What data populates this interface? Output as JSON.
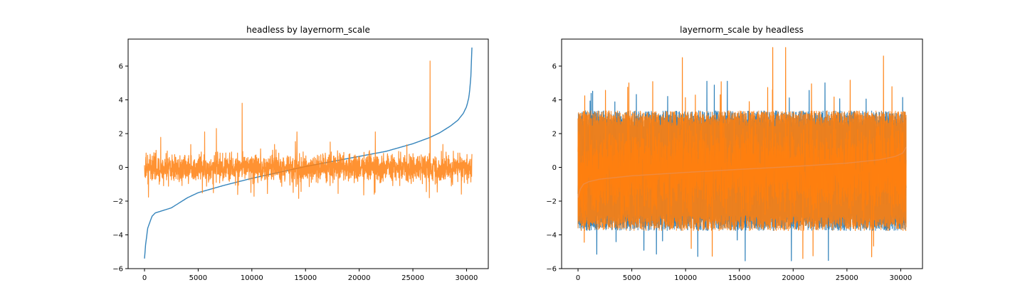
{
  "chart_data": [
    {
      "type": "line",
      "title": "headless by layernorm_scale",
      "xlabel": "",
      "ylabel": "",
      "xlim": [
        -1525,
        32025
      ],
      "ylim": [
        -6,
        7.6
      ],
      "xticks": [
        0,
        5000,
        10000,
        15000,
        20000,
        25000,
        30000
      ],
      "xtick_labels": [
        "0",
        "5000",
        "10000",
        "15000",
        "20000",
        "25000",
        "30000"
      ],
      "yticks": [
        -6,
        -4,
        -2,
        0,
        2,
        4,
        6
      ],
      "ytick_labels": [
        "−6",
        "−4",
        "−2",
        "0",
        "2",
        "4",
        "6"
      ],
      "grid": false,
      "legend": "none",
      "n_points": 30500,
      "series": [
        {
          "color": "#1f77b4",
          "style": "smooth sorted curve",
          "x": [
            0,
            100,
            300,
            700,
            1000,
            1500,
            2000,
            2500,
            3000,
            4000,
            5000,
            7500,
            10000,
            12500,
            15000,
            17500,
            20000,
            22500,
            25000,
            26500,
            27500,
            28500,
            29200,
            29700,
            30000,
            30200,
            30300,
            30400,
            30450,
            30500
          ],
          "y": [
            -5.4,
            -4.6,
            -3.6,
            -2.9,
            -2.7,
            -2.6,
            -2.5,
            -2.4,
            -2.2,
            -1.8,
            -1.5,
            -1.05,
            -0.65,
            -0.3,
            0.05,
            0.35,
            0.65,
            0.95,
            1.4,
            1.75,
            2.05,
            2.45,
            2.8,
            3.2,
            3.6,
            4.1,
            4.6,
            5.4,
            6.2,
            7.1
          ]
        },
        {
          "color": "#ff7f0e",
          "style": "dense noisy trace, ~±1 band",
          "band": [
            -1.2,
            1.1
          ],
          "spikes": [
            {
              "x": 5600,
              "y": 2.1
            },
            {
              "x": 6700,
              "y": 2.3
            },
            {
              "x": 9100,
              "y": 3.8
            },
            {
              "x": 14200,
              "y": 2.1
            },
            {
              "x": 21500,
              "y": 2.1
            },
            {
              "x": 26600,
              "y": 6.3
            }
          ]
        }
      ]
    },
    {
      "type": "line",
      "title": "layernorm_scale by headless",
      "xlabel": "",
      "ylabel": "",
      "xlim": [
        -1525,
        32025
      ],
      "ylim": [
        -6,
        7.6
      ],
      "xticks": [
        0,
        5000,
        10000,
        15000,
        20000,
        25000,
        30000
      ],
      "xtick_labels": [
        "0",
        "5000",
        "10000",
        "15000",
        "20000",
        "25000",
        "30000"
      ],
      "yticks": [
        -6,
        -4,
        -2,
        0,
        2,
        4,
        6
      ],
      "ytick_labels": [
        "−6",
        "−4",
        "−2",
        "0",
        "2",
        "4",
        "6"
      ],
      "grid": false,
      "legend": "none",
      "n_points": 30500,
      "series": [
        {
          "color": "#1f77b4",
          "style": "dense noisy trace (mostly hidden)",
          "band": [
            -3.6,
            3.2
          ]
        },
        {
          "color": "#ff7f0e",
          "style": "dense noisy trace, wide band",
          "band": [
            -3.6,
            3.2
          ],
          "spikes": [
            {
              "x": 9700,
              "y": 6.5
            },
            {
              "x": 18100,
              "y": 7.1
            },
            {
              "x": 19300,
              "y": 7.1
            },
            {
              "x": 20900,
              "y": -5.4
            },
            {
              "x": 27300,
              "y": -5.3
            },
            {
              "x": 28400,
              "y": 6.6
            }
          ]
        },
        {
          "color": "#ec8d47",
          "style": "sorted curve overlaid",
          "x": [
            0,
            200,
            500,
            1000,
            2000,
            5000,
            10000,
            15000,
            20000,
            25000,
            28000,
            29500,
            30200,
            30500
          ],
          "y": [
            -1.8,
            -1.3,
            -1.0,
            -0.85,
            -0.7,
            -0.5,
            -0.3,
            -0.12,
            0.05,
            0.25,
            0.45,
            0.65,
            0.85,
            1.2
          ]
        }
      ]
    }
  ]
}
